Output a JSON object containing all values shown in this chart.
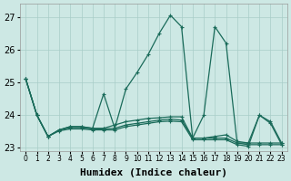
{
  "bg_color": "#cde8e4",
  "grid_color": "#a8cdc8",
  "line_color": "#1a6b5a",
  "xlabel": "Humidex (Indice chaleur)",
  "xlabel_fontsize": 8,
  "ylim": [
    22.9,
    27.4
  ],
  "xlim": [
    -0.5,
    23.5
  ],
  "yticks": [
    23,
    24,
    25,
    26,
    27
  ],
  "xtick_labels": [
    "0",
    "1",
    "2",
    "3",
    "4",
    "5",
    "6",
    "7",
    "8",
    "9",
    "10",
    "11",
    "12",
    "13",
    "14",
    "15",
    "16",
    "17",
    "18",
    "19",
    "20",
    "21",
    "22",
    "23"
  ],
  "series": [
    [
      25.1,
      24.0,
      23.35,
      23.55,
      23.65,
      23.65,
      23.6,
      24.65,
      23.6,
      24.8,
      25.3,
      25.85,
      26.5,
      27.05,
      26.7,
      23.3,
      24.0,
      26.7,
      26.2,
      23.15,
      23.15,
      24.0,
      23.8,
      23.15
    ],
    [
      25.1,
      24.0,
      23.35,
      23.55,
      23.65,
      23.65,
      23.6,
      23.6,
      23.7,
      23.8,
      23.85,
      23.9,
      23.92,
      23.95,
      23.95,
      23.3,
      23.3,
      23.35,
      23.4,
      23.2,
      23.15,
      23.15,
      23.15,
      23.15
    ],
    [
      25.1,
      24.0,
      23.35,
      23.55,
      23.62,
      23.62,
      23.58,
      23.58,
      23.6,
      23.7,
      23.75,
      23.8,
      23.85,
      23.88,
      23.85,
      23.3,
      23.3,
      23.3,
      23.3,
      23.15,
      23.1,
      23.1,
      23.1,
      23.1
    ],
    [
      25.1,
      24.0,
      23.35,
      23.52,
      23.58,
      23.58,
      23.55,
      23.55,
      23.55,
      23.65,
      23.7,
      23.75,
      23.8,
      23.82,
      23.8,
      23.25,
      23.25,
      23.25,
      23.25,
      23.1,
      23.05,
      24.0,
      23.75,
      23.1
    ]
  ]
}
